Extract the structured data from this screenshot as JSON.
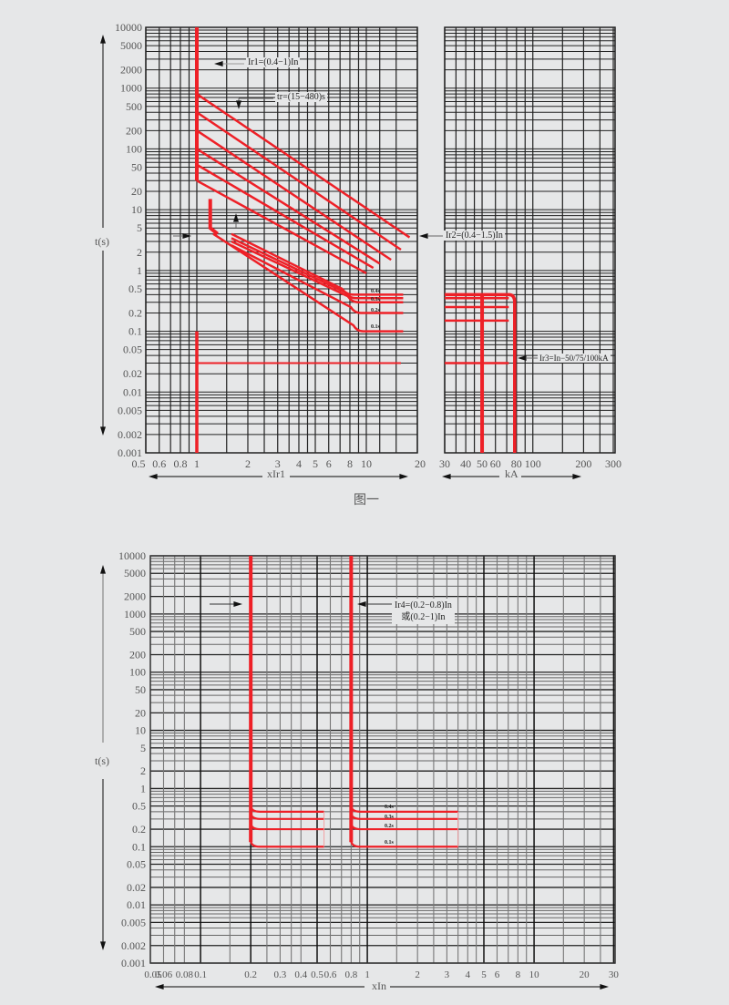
{
  "figure1": {
    "caption": "图一",
    "y_axis_label": "t(s)",
    "x_axis_label_left": "xIr1",
    "x_axis_label_right": "kA",
    "annotations": {
      "ir1": "Ir1=(0.4−1)In",
      "tr": "tr=(15−480)s",
      "ir2": "Ir2=(0.4−1.5)In",
      "ir3": "Ir3=In−50/75/100kA",
      "t04": "0.4s",
      "t03": "0.3s",
      "t02": "0.2s",
      "t01": "0.1s"
    }
  },
  "figure2": {
    "y_axis_label": "t(s)",
    "x_axis_label": "xIn",
    "annotations": {
      "ir4_line1": "Ir4=(0.2−0.8)In",
      "ir4_line2": "或(0.2−1)In",
      "t04": "0.4s",
      "t03": "0.3s",
      "t02": "0.2s",
      "t01": "0.1s"
    }
  },
  "chart_data": [
    {
      "type": "line",
      "title": "图一",
      "xlabel": "xIr1 / kA",
      "ylabel": "t(s)",
      "y_scale": "log",
      "ylim": [
        0.001,
        10000
      ],
      "y_ticks": [
        "10000",
        "5000",
        "2000",
        "1000",
        "500",
        "200",
        "100",
        "50",
        "20",
        "10",
        "5",
        "2",
        "1",
        "0.5",
        "0.2",
        "0.1",
        "0.05",
        "0.02",
        "0.01",
        "0.005",
        "0.002",
        "0.001"
      ],
      "x_ticks_left": [
        "0.5",
        "0.6",
        "0.8",
        "1",
        "2",
        "3",
        "4",
        "5",
        "6",
        "8",
        "10",
        "20"
      ],
      "x_ticks_right": [
        "30",
        "40",
        "50",
        "60",
        "80",
        "100",
        "200",
        "300"
      ],
      "series": [
        {
          "name": "Long-time delay tr (15–480s)",
          "description": "6 parallel inverse-time curves starting at x=1 from t≈800s down to t≈30s, falling to t≈3s around x=15–20"
        },
        {
          "name": "Short-time Ir2=(0.4−1.5)In",
          "description": "inverse-time curves starting x≈1.2 at t≈10s, ending in flat definite-time bands"
        },
        {
          "name": "Short-time delay 0.4s",
          "x": [
            8,
            17
          ],
          "y": [
            0.4,
            0.4
          ]
        },
        {
          "name": "Short-time delay 0.3s",
          "x": [
            8,
            17
          ],
          "y": [
            0.3,
            0.3
          ]
        },
        {
          "name": "Short-time delay 0.2s",
          "x": [
            8,
            17
          ],
          "y": [
            0.2,
            0.2
          ]
        },
        {
          "name": "Short-time delay 0.1s",
          "x": [
            8,
            17
          ],
          "y": [
            0.1,
            0.1
          ]
        },
        {
          "name": "Instantaneous Ir3 at x=1",
          "x": [
            1,
            1,
            16
          ],
          "y": [
            0.1,
            0.03,
            0.03
          ]
        },
        {
          "name": "Ir3=In−50/75/100kA",
          "x_kA": [
            50,
            75
          ],
          "y_range": [
            0.001,
            0.4
          ]
        }
      ]
    },
    {
      "type": "line",
      "title": "",
      "xlabel": "xIn",
      "ylabel": "t(s)",
      "y_scale": "log",
      "ylim": [
        0.001,
        10000
      ],
      "y_ticks": [
        "10000",
        "5000",
        "2000",
        "1000",
        "500",
        "200",
        "100",
        "50",
        "20",
        "10",
        "5",
        "2",
        "1",
        "0.5",
        "0.2",
        "0.1",
        "0.05",
        "0.02",
        "0.01",
        "0.005",
        "0.002",
        "0.001"
      ],
      "x_ticks": [
        "0.05",
        "0.06",
        "0.08",
        "0.1",
        "0.2",
        "0.3",
        "0.4",
        "0.5",
        "0.6",
        "0.8",
        "1",
        "2",
        "3",
        "4",
        "5",
        "6",
        "8",
        "10",
        "20",
        "30"
      ],
      "series": [
        {
          "name": "Ir4=0.2In",
          "x": [
            0.2,
            0.2
          ],
          "y": [
            10000,
            0.1
          ],
          "delays_s": [
            0.4,
            0.3,
            0.2,
            0.1
          ],
          "delay_end_x": 0.5
        },
        {
          "name": "Ir4=0.8In",
          "x": [
            0.8,
            0.8
          ],
          "y": [
            10000,
            0.1
          ],
          "delays_s": [
            0.4,
            0.3,
            0.2,
            0.1
          ],
          "delay_end_x": 3.5
        }
      ]
    }
  ]
}
